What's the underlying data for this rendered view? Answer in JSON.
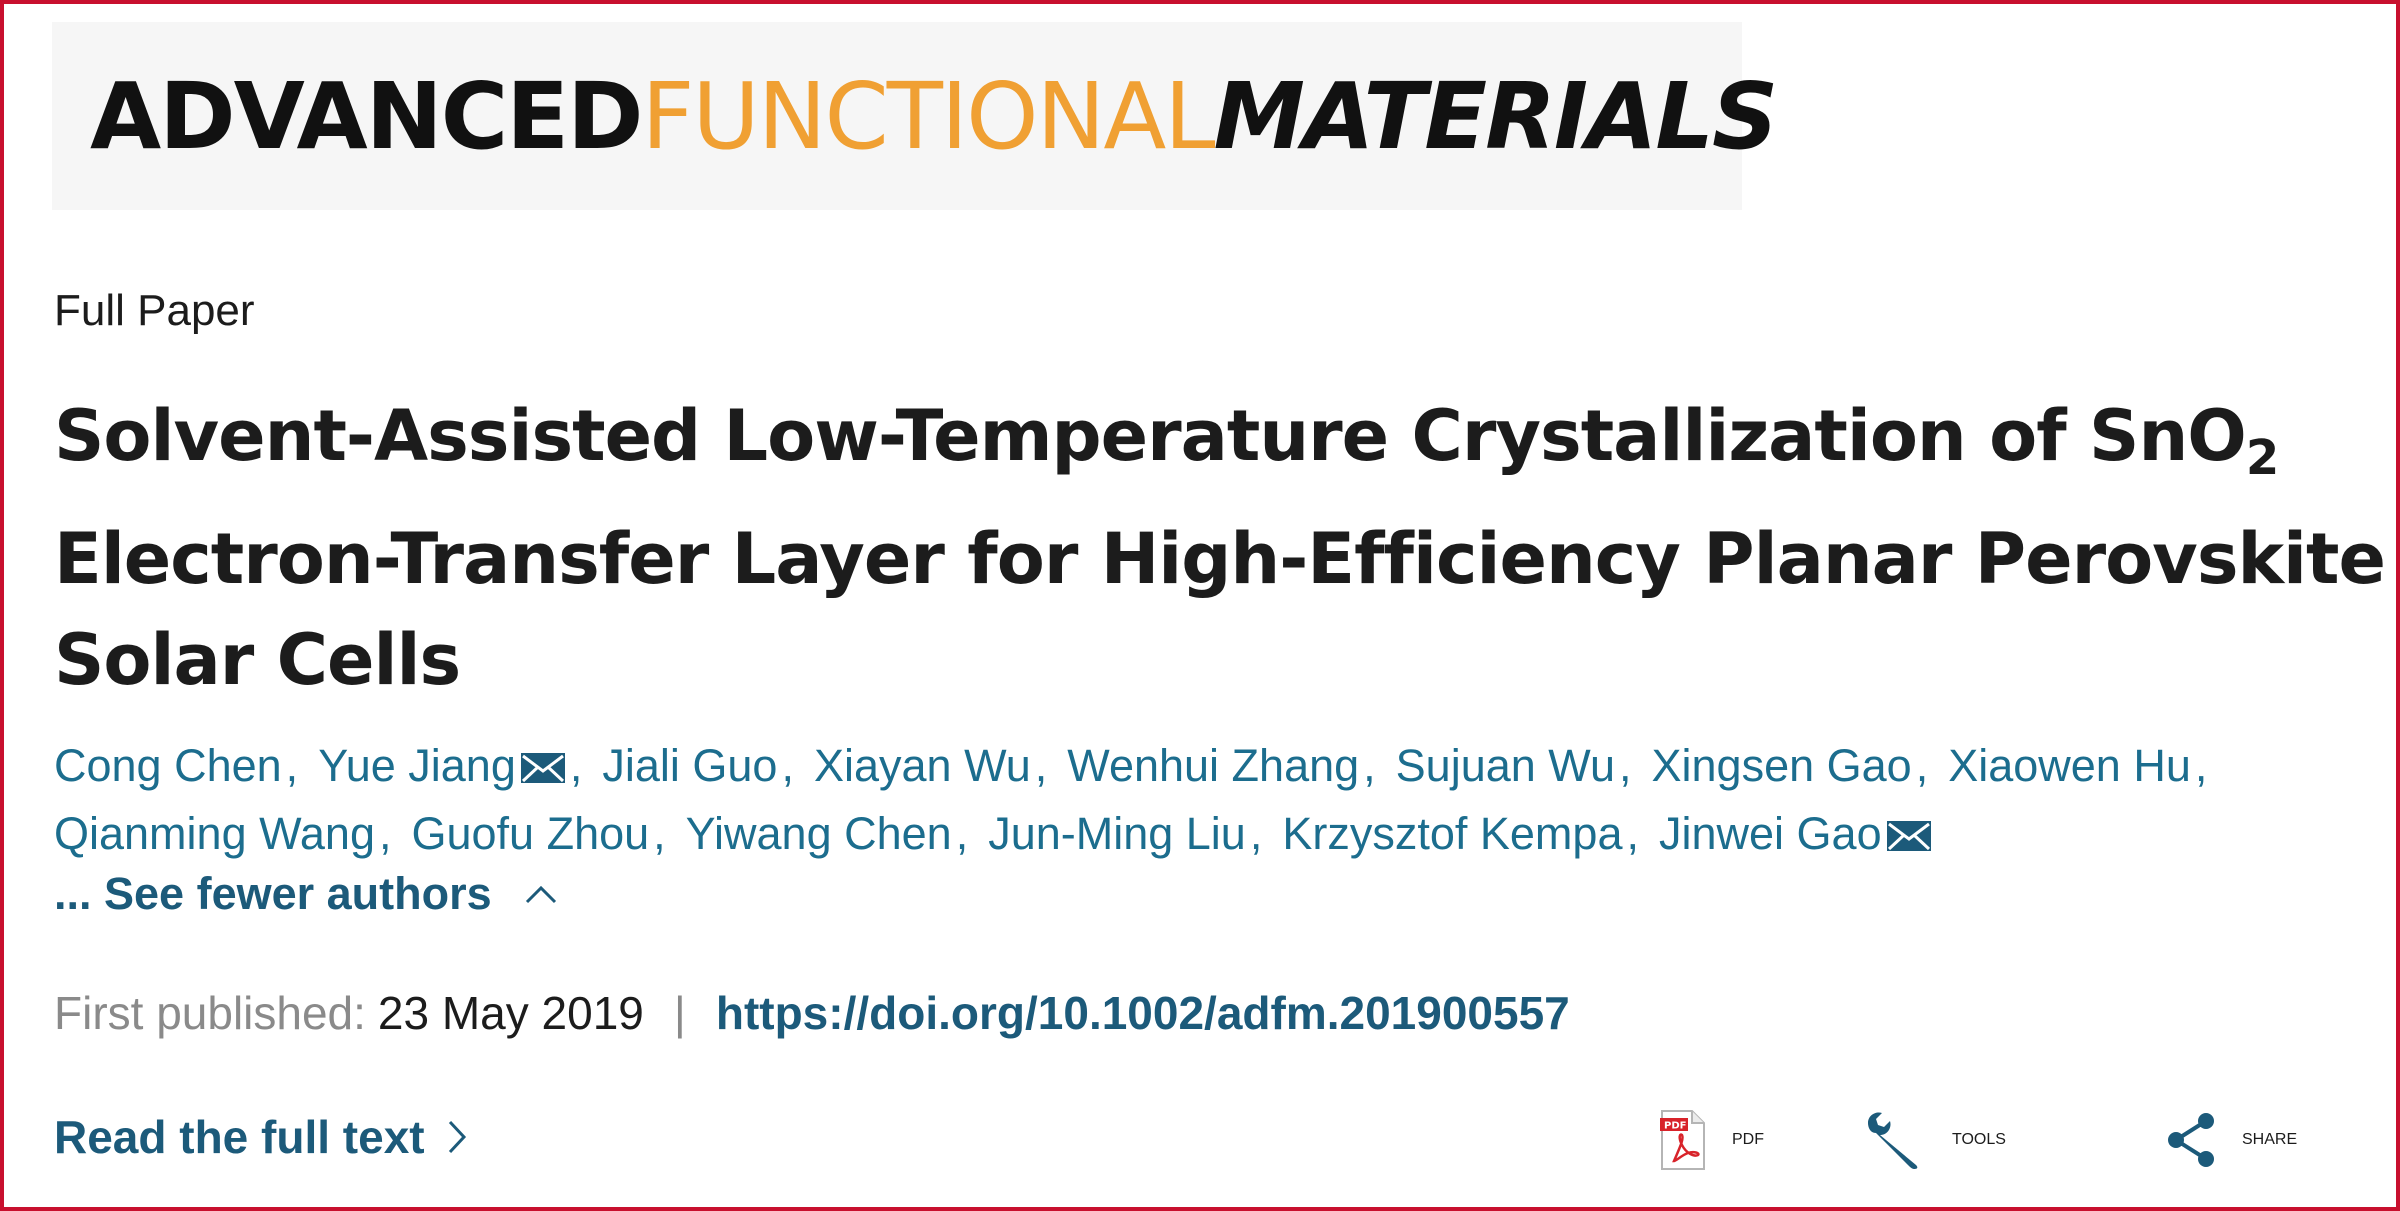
{
  "journal": {
    "name_part1": "ADVANCED",
    "name_part2": "FUNCTIONAL",
    "name_part3": "MATERIALS",
    "color_accent": "#f0a033"
  },
  "article": {
    "type": "Full Paper",
    "title_line1_prefix": "Solvent-Assisted Low-Temperature Crystallization of SnO",
    "title_line1_sub": "2",
    "title_line2": "Electron-Transfer Layer for High-Efficiency Planar Perovskite",
    "title_line3": "Solar Cells"
  },
  "authors": {
    "row1": [
      {
        "name": "Cong Chen",
        "mail": false
      },
      {
        "name": "Yue Jiang",
        "mail": true
      },
      {
        "name": "Jiali Guo",
        "mail": false
      },
      {
        "name": "Xiayan Wu",
        "mail": false
      },
      {
        "name": "Wenhui Zhang",
        "mail": false
      },
      {
        "name": "Sujuan Wu",
        "mail": false
      },
      {
        "name": "Xingsen Gao",
        "mail": false
      },
      {
        "name": "Xiaowen Hu",
        "mail": false
      }
    ],
    "row2": [
      {
        "name": "Qianming Wang",
        "mail": false
      },
      {
        "name": "Guofu Zhou",
        "mail": false
      },
      {
        "name": "Yiwang Chen",
        "mail": false
      },
      {
        "name": "Jun-Ming Liu",
        "mail": false
      },
      {
        "name": "Krzysztof Kempa",
        "mail": false
      },
      {
        "name": "Jinwei Gao",
        "mail": true
      }
    ],
    "toggle_label": "... See fewer authors",
    "link_color": "#1c6d8e"
  },
  "publication": {
    "label": "First published:",
    "date": "23 May 2019",
    "separator": "|",
    "doi": "https://doi.org/10.1002/adfm.201900557"
  },
  "read_full": {
    "label": "Read the full text"
  },
  "actions": {
    "pdf": "PDF",
    "tools": "TOOLS",
    "share": "SHARE",
    "pdf_icon": "pdf-file-icon",
    "tools_icon": "wrench-icon",
    "share_icon": "share-icon"
  },
  "colors": {
    "frame_border": "#c8102e",
    "link": "#1c5a7a"
  }
}
